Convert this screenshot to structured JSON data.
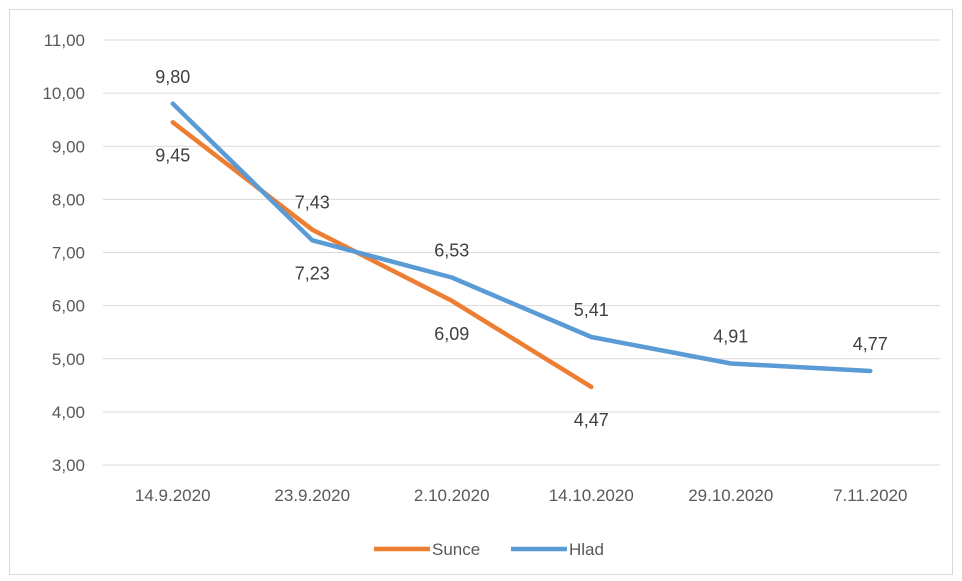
{
  "chart_data": {
    "type": "line",
    "title": "",
    "xlabel": "",
    "ylabel": "",
    "categories": [
      "14.9.2020",
      "23.9.2020",
      "2.10.2020",
      "14.10.2020",
      "29.10.2020",
      "7.11.2020"
    ],
    "y_ticks": [
      "3,00",
      "4,00",
      "5,00",
      "6,00",
      "7,00",
      "8,00",
      "9,00",
      "10,00",
      "11,00"
    ],
    "ylim": [
      3,
      11
    ],
    "grid": true,
    "legend_position": "bottom",
    "series": [
      {
        "name": "Sunce",
        "color": "#ED7D31",
        "values": [
          9.45,
          7.43,
          6.09,
          4.47,
          null,
          null
        ],
        "labels": [
          "9,45",
          "7,43",
          "6,09",
          "4,47",
          null,
          null
        ]
      },
      {
        "name": "Hlad",
        "color": "#5B9BD5",
        "values": [
          9.8,
          7.23,
          6.53,
          5.41,
          4.91,
          4.77
        ],
        "labels": [
          "9,80",
          "7,23",
          "6,53",
          "5,41",
          "4,91",
          "4,77"
        ]
      }
    ]
  }
}
